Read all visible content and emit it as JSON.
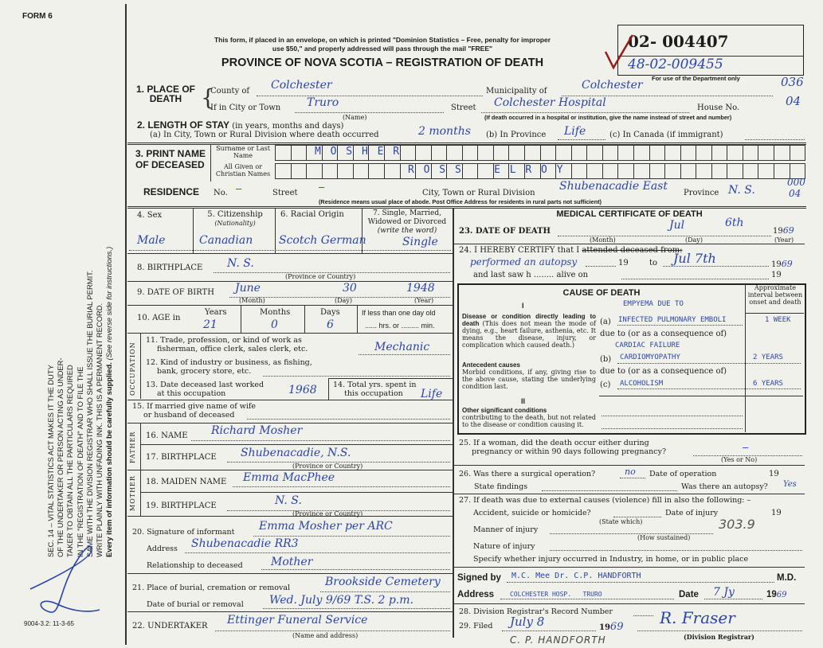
{
  "form_id": "FORM 6",
  "print_code": "9004-3.2: 11-3-65",
  "side_notice": {
    "lines": [
      "SEC. 14 – VITAL STATISTICS ACT MAKES IT THE DUTY",
      "OF THE UNDERTAKER OR PERSON ACTING AS UNDER-",
      "TAKER TO OBTAIN ALL THE PARTICULARS REQUIRED",
      "IN THE \"REGISTRATION OF DEATH\" AND TO FILE THE",
      "SAME WITH THE DIVISION REGISTRAR WHO SHALL ISSUE THE BURIAL PERMIT.",
      "WRITE PLAINLY WITH UNFADING INK. THIS IS A PERMANENT RECORD."
    ],
    "every_item": "Every item of information should be carefully supplied.",
    "see_reverse": "(See reverse side for instructions.)"
  },
  "header": {
    "mail_notice_1": "This form, if placed in an envelope, on which is printed \"Dominion Statistics – Free, penalty for improper",
    "mail_notice_2": "use $50,\" and properly addressed will pass through the mail \"FREE\"",
    "title": "PROVINCE OF NOVA SCOTIA – REGISTRATION OF DEATH",
    "reg_number": "02- 004407",
    "handwritten_number": "48-02-009455",
    "dept_only": "For use of the Department only",
    "dept_code_1": "036",
    "dept_code_2": "04"
  },
  "place_of_death": {
    "label": "1. PLACE OF DEATH",
    "county_label": "County of",
    "county": "Colchester",
    "municipality_label": "Municipality of",
    "municipality": "Colchester",
    "city_label": "If in City or Town",
    "city": "Truro",
    "name_hint": "(Name)",
    "street_label": "Street",
    "street": "Colchester Hospital",
    "house_label": "House No.",
    "street_hint": "(If death occurred in a hospital or institution, give the name instead of street and number)"
  },
  "length_of_stay": {
    "label": "2. LENGTH OF STAY",
    "hint": "(in years, months and days)",
    "a_label": "(a) In City, Town or Rural Division where death occurred",
    "a": "2 months",
    "b_label": "(b) In Province",
    "b": "Life",
    "c_label": "(c) In Canada (if immigrant)"
  },
  "name": {
    "label": "3. PRINT NAME OF DECEASED",
    "surname_label": "Surname or Last Name",
    "surname": "M O S H E R",
    "given_label": "All Given or Christian Names",
    "given": "R O S S    E L R O Y"
  },
  "residence": {
    "label": "RESIDENCE",
    "no_label": "No.",
    "no": "—",
    "street_label": "Street",
    "street": "—",
    "city_label": "City, Town or Rural Division",
    "city": "Shubenacadie East",
    "province_label": "Province",
    "province": "N. S.",
    "code_1": "000",
    "code_2": "04",
    "hint": "(Residence means usual place of abode. Post Office Address for residents in rural parts not sufficient)"
  },
  "personal": {
    "sex_label": "4. Sex",
    "sex": "Male",
    "citizenship_label": "5. Citizenship",
    "citizenship_hint": "(Nationality)",
    "citizenship": "Canadian",
    "racial_label": "6. Racial Origin",
    "racial": "Scotch German",
    "marital_label": "7. Single, Married, Widowed or Divorced",
    "marital_hint": "(write the word)",
    "marital": "Single",
    "birthplace_label": "8. BIRTHPLACE",
    "birthplace": "N. S.",
    "province_hint": "(Province or Country)",
    "dob_label": "9. DATE OF BIRTH",
    "dob_month": "June",
    "dob_day": "30",
    "dob_year": "1948",
    "month_hint": "(Month)",
    "day_hint": "(Day)",
    "year_hint": "(Year)",
    "age_label": "10. AGE in",
    "years_label": "Years",
    "years": "21",
    "months_label": "Months",
    "months": "0",
    "days_label": "Days",
    "days": "6",
    "less_day": "If less than one day old",
    "hrs_min": "...... hrs. or ......... min."
  },
  "occupation": {
    "section": "OCCUPATION",
    "trade_label_1": "11. Trade, profession, or kind of work as",
    "trade_label_2": "fisherman, office clerk, sales clerk, etc.",
    "trade": "Mechanic",
    "industry_label_1": "12. Kind of industry or business, as fishing,",
    "industry_label_2": "bank, grocery store, etc.",
    "last_worked_label_1": "13. Date deceased last worked",
    "last_worked_label_2": "at this occupation",
    "last_worked": "1968",
    "total_label_1": "14. Total yrs. spent in",
    "total_label_2": "this occupation",
    "total": "Life",
    "spouse_label_1": "15. If married give name of wife",
    "spouse_label_2": "or husband of deceased"
  },
  "father": {
    "section": "FATHER",
    "name_label": "16. NAME",
    "name": "Richard Mosher",
    "birthplace_label": "17. BIRTHPLACE",
    "birthplace": "Shubenacadie, N.S."
  },
  "mother": {
    "section": "MOTHER",
    "maiden_label": "18. MAIDEN NAME",
    "maiden": "Emma MacPhee",
    "birthplace_label": "19. BIRTHPLACE",
    "birthplace": "N. S."
  },
  "informant": {
    "signature_label": "20. Signature of informant",
    "signature": "Emma Mosher per ARC",
    "address_label": "Address",
    "address": "Shubenacadie RR3",
    "relationship_label": "Relationship to deceased",
    "relationship": "Mother"
  },
  "burial": {
    "place_label": "21. Place of burial, cremation or removal",
    "place": "Brookside Cemetery",
    "date_label": "Date of burial or removal",
    "date": "Wed. July 9/69 T.S. 2 p.m.",
    "undertaker_label": "22. UNDERTAKER",
    "undertaker": "Ettinger Funeral Service",
    "undertaker_hint": "(Name and address)"
  },
  "medical": {
    "title": "MEDICAL CERTIFICATE OF DEATH",
    "dod_label": "23. DATE OF DEATH",
    "dod_month": "Jul",
    "dod_day": "6th",
    "dod_year_prefix": "19",
    "dod_year": "69",
    "certify_label": "24. I HEREBY CERTIFY that I",
    "certify_struck": "attended deceased from:",
    "certify_from": "performed an autopsy",
    "nineteen": "19",
    "to_label": "to",
    "to_date": "Jul 7th",
    "to_year": "69",
    "last_saw": "and last saw h ........ alive on"
  },
  "cause": {
    "title": "CAUSE OF DEATH",
    "interval_header": "Approximate interval between onset and death",
    "part_1": "I",
    "direct_bold": "Disease or condition directly leading to death",
    "direct_text": "(This does not mean the mode of dying, e.g., heart failure, asthenia, etc. It means the disease, injury, or complication which caused death.)",
    "line_above_a": "EMPYEMA DUE TO",
    "a_label": "(a)",
    "a": "INFECTED PULMONARY EMBOLI",
    "a_interval": "1 WEEK",
    "due_to": "due to (or as a consequence of)",
    "line_above_b": "CARDIAC FAILURE",
    "antecedent_bold": "Antecedent causes",
    "antecedent_text": "Morbid conditions, if any, giving rise to the above cause, stating the underlying condition last.",
    "b_label": "(b)",
    "b": "CARDIOMYOPATHY",
    "b_interval": "2 YEARS",
    "c_label": "(c)",
    "c": "ALCOHOLISM",
    "c_interval": "6 YEARS",
    "part_2": "II",
    "other_bold": "Other significant conditions",
    "other_text": "contributing to the death, but not related to the disease or condition causing it."
  },
  "q25": {
    "label_1": "25. If a woman, did the death occur either during",
    "label_2": "pregnancy or within 90 days following pregnancy?",
    "answer": "—",
    "hint": "(Yes or No)"
  },
  "q26": {
    "label": "26. Was there a surgical operation?",
    "answer": "no",
    "op_date_label": "Date of operation",
    "nineteen": "19",
    "findings_label": "State findings",
    "autopsy_label": "Was there an autopsy?",
    "autopsy": "Yes"
  },
  "q27": {
    "label": "27. If death was due to external causes (violence) fill in also the following: –",
    "accident_label": "Accident, suicide or homicide?",
    "state_which": "(State which)",
    "injury_date_label": "Date of injury",
    "nineteen": "19",
    "code": "303.9",
    "manner_label": "Manner of injury",
    "how_sustained": "(How sustained)",
    "nature_label": "Nature of injury",
    "specify_label": "Specify whether injury occurred in Industry, in home, or in public place"
  },
  "signature": {
    "signed_label": "Signed by",
    "signed": "M.C. Mee  Dr. C.P. HANDFORTH",
    "md": "M.D.",
    "address_label": "Address",
    "address": "COLCHESTER HOSP.   TRURO",
    "date_label": "Date",
    "date": "7 Jy",
    "year_prefix": "19",
    "year": "69"
  },
  "registrar": {
    "record_label": "28. Division Registrar's Record Number",
    "filed_label": "29. Filed",
    "filed": "July 8",
    "filed_year": "69",
    "nineteen": "19",
    "registrar_signature": "R. Fraser",
    "registrar_hint": "(Division Registrar)",
    "stamp_name": "C. P. HANDFORTH"
  },
  "colors": {
    "paper": "#f1f1ec",
    "ink": "#2a44a8",
    "check": "#9a1a1a"
  }
}
